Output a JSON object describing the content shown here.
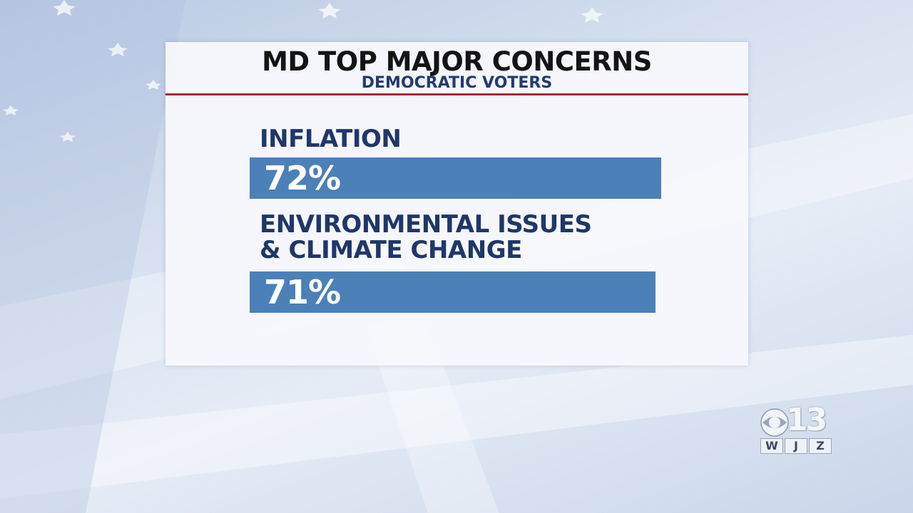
{
  "graphic": {
    "title": "MD TOP MAJOR CONCERNS",
    "subtitle": "DEMOCRATIC VOTERS"
  },
  "chart_data": {
    "type": "bar",
    "title": "MD TOP MAJOR CONCERNS",
    "subtitle": "DEMOCRATIC VOTERS",
    "categories": [
      "INFLATION",
      "ENVIRONMENTAL ISSUES & CLIMATE CHANGE"
    ],
    "category_lines": [
      [
        "INFLATION"
      ],
      [
        "ENVIRONMENTAL ISSUES",
        "& CLIMATE CHANGE"
      ]
    ],
    "values": [
      72,
      71
    ],
    "value_labels": [
      "72%",
      "71%"
    ],
    "orientation": "horizontal",
    "grid": false,
    "colors": {
      "bar": "#4b80b8",
      "category_text": "#1f3769",
      "subtitle_text": "#243a73",
      "title_text": "#141414",
      "rule": "#9d2b35"
    }
  },
  "logo": {
    "channel": "13",
    "callsign": [
      "W",
      "J",
      "Z"
    ],
    "icon": "cbs-eye-icon"
  }
}
